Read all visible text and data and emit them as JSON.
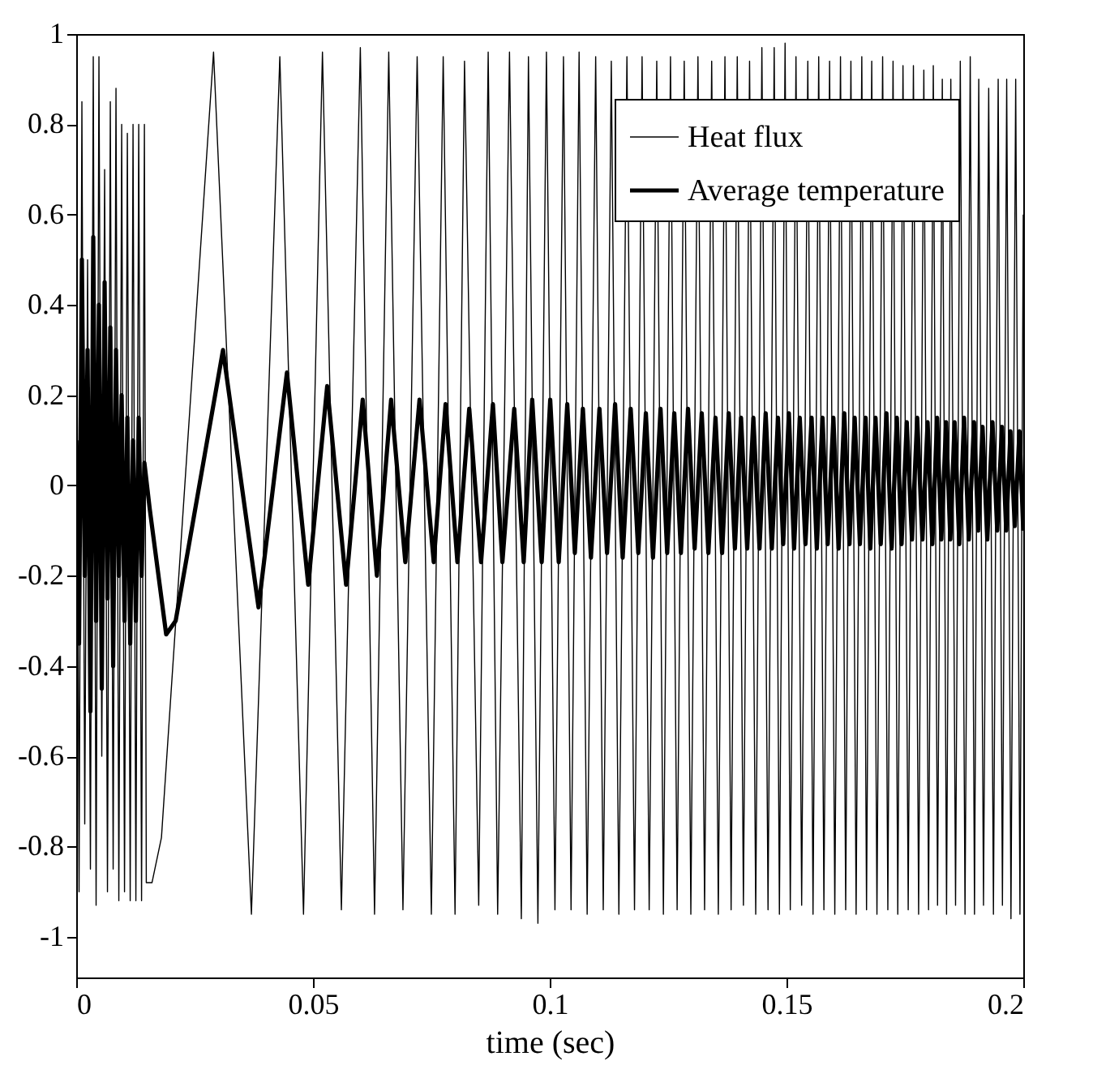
{
  "chart_data": {
    "type": "line",
    "xlabel": "time (sec)",
    "xlim": [
      0,
      0.2
    ],
    "ylim": [
      -1.09,
      1
    ],
    "xticks": [
      0,
      0.05,
      0.1,
      0.15,
      0.2
    ],
    "yticks": [
      -1,
      -0.8,
      -0.6,
      -0.4,
      -0.2,
      0,
      0.2,
      0.4,
      0.6,
      0.8,
      1
    ],
    "grid": false,
    "legend": "top right",
    "marker": "none",
    "line_style": "solid",
    "series": [
      {
        "name": "Heat flux",
        "color": "#000000",
        "x": [
          0,
          0.0006,
          0.0012,
          0.0018,
          0.0024,
          0.003,
          0.0036,
          0.0042,
          0.0048,
          0.0054,
          0.006,
          0.0066,
          0.0072,
          0.0078,
          0.0084,
          0.009,
          0.0096,
          0.0102,
          0.0108,
          0.0114,
          0.012,
          0.0126,
          0.0132,
          0.0138,
          0.0144,
          0.0148,
          0.016,
          0.018,
          0.029,
          0.037,
          0.043,
          0.048,
          0.052,
          0.056,
          0.06,
          0.063,
          0.066,
          0.069,
          0.072,
          0.075,
          0.0775,
          0.08,
          0.082,
          0.085,
          0.087,
          0.089,
          0.0915,
          0.094,
          0.0955,
          0.0975,
          0.0993,
          0.1011,
          0.1029,
          0.1045,
          0.1062,
          0.1079,
          0.1097,
          0.1113,
          0.113,
          0.1146,
          0.1163,
          0.1179,
          0.1195,
          0.121,
          0.1226,
          0.124,
          0.1255,
          0.1269,
          0.1284,
          0.1298,
          0.1313,
          0.1327,
          0.1342,
          0.1356,
          0.137,
          0.1383,
          0.1396,
          0.1409,
          0.1422,
          0.1435,
          0.1448,
          0.1461,
          0.1474,
          0.1485,
          0.1497,
          0.1508,
          0.152,
          0.1532,
          0.1545,
          0.1556,
          0.1568,
          0.1579,
          0.1591,
          0.1602,
          0.1614,
          0.1625,
          0.1636,
          0.1647,
          0.1659,
          0.1669,
          0.168,
          0.1691,
          0.1703,
          0.1714,
          0.1725,
          0.1735,
          0.1746,
          0.1757,
          0.1768,
          0.1779,
          0.179,
          0.18,
          0.181,
          0.1819,
          0.1829,
          0.1838,
          0.1847,
          0.1857,
          0.1867,
          0.1877,
          0.1888,
          0.1897,
          0.1906,
          0.1916,
          0.1927,
          0.1937,
          0.1947,
          0.1956,
          0.1965,
          0.1974,
          0.1984,
          0.1993,
          0.2
        ],
        "values": [
          0.9,
          -0.9,
          0.85,
          -0.75,
          0.5,
          -0.85,
          0.95,
          -0.93,
          0.95,
          -0.6,
          0.7,
          -0.9,
          0.85,
          -0.85,
          0.88,
          -0.92,
          0.8,
          -0.9,
          0.78,
          -0.92,
          0.8,
          -0.92,
          0.8,
          -0.92,
          0.8,
          -0.88,
          -0.88,
          -0.78,
          0.96,
          -0.95,
          0.95,
          -0.95,
          0.96,
          -0.94,
          0.97,
          -0.95,
          0.96,
          -0.94,
          0.95,
          -0.95,
          0.95,
          -0.95,
          0.94,
          -0.93,
          0.96,
          -0.95,
          0.96,
          -0.96,
          0.95,
          -0.97,
          0.96,
          -0.94,
          0.95,
          -0.94,
          0.96,
          -0.95,
          0.95,
          -0.94,
          0.94,
          -0.95,
          0.95,
          -0.94,
          0.95,
          -0.94,
          0.94,
          -0.95,
          0.95,
          -0.94,
          0.94,
          -0.95,
          0.95,
          -0.94,
          0.94,
          -0.95,
          0.95,
          -0.94,
          0.95,
          -0.93,
          0.94,
          -0.95,
          0.97,
          -0.94,
          0.97,
          -0.95,
          0.98,
          -0.94,
          0.95,
          -0.93,
          0.94,
          -0.95,
          0.95,
          -0.94,
          0.94,
          -0.95,
          0.95,
          -0.94,
          0.94,
          -0.95,
          0.95,
          -0.94,
          0.94,
          -0.95,
          0.95,
          -0.94,
          0.94,
          -0.95,
          0.93,
          -0.94,
          0.93,
          -0.95,
          0.92,
          -0.94,
          0.93,
          -0.93,
          0.9,
          -0.95,
          0.9,
          -0.93,
          0.94,
          -0.95,
          0.95,
          -0.95,
          0.9,
          -0.93,
          0.88,
          -0.95,
          0.9,
          -0.93,
          0.9,
          -0.96,
          0.9,
          -0.95,
          0.6
        ]
      },
      {
        "name": "Average temperature",
        "color": "#000000",
        "x": [
          0,
          0.0006,
          0.0012,
          0.0018,
          0.0024,
          0.003,
          0.0036,
          0.0042,
          0.0048,
          0.0054,
          0.006,
          0.0066,
          0.0072,
          0.0078,
          0.0084,
          0.009,
          0.0096,
          0.0102,
          0.0108,
          0.0114,
          0.012,
          0.0126,
          0.0132,
          0.0138,
          0.0144,
          0.0155,
          0.019,
          0.021,
          0.031,
          0.0385,
          0.0445,
          0.049,
          0.053,
          0.057,
          0.0605,
          0.0635,
          0.0665,
          0.0695,
          0.0725,
          0.0755,
          0.078,
          0.0805,
          0.083,
          0.0855,
          0.088,
          0.09,
          0.0925,
          0.0945,
          0.0963,
          0.0983,
          0.1001,
          0.1019,
          0.1037,
          0.1053,
          0.107,
          0.1087,
          0.1105,
          0.1121,
          0.1138,
          0.1154,
          0.1171,
          0.1187,
          0.1203,
          0.1218,
          0.1234,
          0.1248,
          0.1263,
          0.1277,
          0.1292,
          0.1306,
          0.1321,
          0.1335,
          0.135,
          0.1364,
          0.1378,
          0.1391,
          0.1404,
          0.1417,
          0.143,
          0.1443,
          0.1456,
          0.1469,
          0.1482,
          0.1493,
          0.1505,
          0.1516,
          0.1528,
          0.154,
          0.1553,
          0.1564,
          0.1576,
          0.1587,
          0.1599,
          0.161,
          0.1622,
          0.1633,
          0.1644,
          0.1655,
          0.1667,
          0.1677,
          0.1688,
          0.1699,
          0.1711,
          0.1722,
          0.1733,
          0.1743,
          0.1754,
          0.1765,
          0.1776,
          0.1787,
          0.1798,
          0.1808,
          0.1818,
          0.1827,
          0.1837,
          0.1846,
          0.1855,
          0.1865,
          0.1875,
          0.1885,
          0.1896,
          0.1905,
          0.1914,
          0.1924,
          0.1935,
          0.1945,
          0.1955,
          0.1964,
          0.1973,
          0.1982,
          0.1992,
          0.2
        ],
        "values": [
          0.1,
          -0.35,
          0.5,
          -0.2,
          0.3,
          -0.5,
          0.55,
          -0.3,
          0.4,
          -0.45,
          0.45,
          -0.25,
          0.35,
          -0.4,
          0.3,
          -0.2,
          0.2,
          -0.3,
          0.15,
          -0.35,
          0.1,
          -0.3,
          0.15,
          -0.2,
          0.05,
          -0.05,
          -0.33,
          -0.3,
          0.3,
          -0.27,
          0.25,
          -0.22,
          0.22,
          -0.22,
          0.19,
          -0.2,
          0.19,
          -0.17,
          0.19,
          -0.17,
          0.18,
          -0.17,
          0.17,
          -0.17,
          0.18,
          -0.17,
          0.17,
          -0.17,
          0.19,
          -0.17,
          0.19,
          -0.17,
          0.18,
          -0.15,
          0.17,
          -0.16,
          0.17,
          -0.15,
          0.18,
          -0.16,
          0.17,
          -0.15,
          0.16,
          -0.16,
          0.17,
          -0.15,
          0.16,
          -0.15,
          0.17,
          -0.14,
          0.16,
          -0.15,
          0.15,
          -0.15,
          0.16,
          -0.14,
          0.15,
          -0.14,
          0.15,
          -0.14,
          0.16,
          -0.14,
          0.15,
          -0.13,
          0.16,
          -0.14,
          0.15,
          -0.13,
          0.15,
          -0.14,
          0.15,
          -0.13,
          0.15,
          -0.14,
          0.16,
          -0.13,
          0.15,
          -0.13,
          0.15,
          -0.14,
          0.15,
          -0.13,
          0.16,
          -0.14,
          0.15,
          -0.13,
          0.14,
          -0.12,
          0.15,
          -0.12,
          0.14,
          -0.13,
          0.15,
          -0.12,
          0.14,
          -0.12,
          0.14,
          -0.13,
          0.15,
          -0.12,
          0.14,
          -0.1,
          0.13,
          -0.12,
          0.14,
          -0.1,
          0.13,
          -0.1,
          0.12,
          -0.09,
          0.12,
          -0.1
        ]
      }
    ]
  }
}
